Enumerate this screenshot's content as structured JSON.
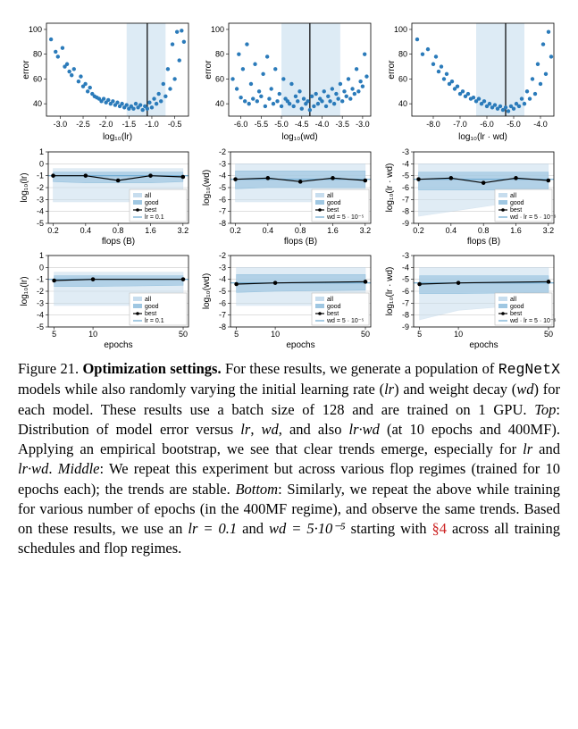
{
  "grid": {
    "columns": 3,
    "rows": 3,
    "point_color": "#2b7bba",
    "point_radius": 2.2,
    "band_fill_light": "#c7ddee",
    "band_fill_mid": "#9fc7e2",
    "best_line_color": "#000000",
    "best_marker_color": "#000000",
    "ref_line_color": "#6aa8d0",
    "grid_color": "#cccccc",
    "axis_color": "#000000",
    "bg_color": "#ffffff"
  },
  "top_row": {
    "y": {
      "label": "error",
      "min": 30,
      "max": 105,
      "ticks": [
        40,
        60,
        80,
        100
      ]
    },
    "panels": [
      {
        "xlabel": "log₁₀(lr)",
        "xmin": -3.3,
        "xmax": -0.2,
        "xticks": [
          -3.0,
          -2.5,
          -2.0,
          -1.5,
          -1.0,
          -0.5
        ],
        "band_x": [
          -1.55,
          -0.7
        ],
        "best_x": -1.1,
        "points": [
          [
            -3.2,
            92
          ],
          [
            -3.1,
            82
          ],
          [
            -3.05,
            78
          ],
          [
            -2.95,
            85
          ],
          [
            -2.9,
            70
          ],
          [
            -2.85,
            72
          ],
          [
            -2.8,
            66
          ],
          [
            -2.75,
            63
          ],
          [
            -2.7,
            68
          ],
          [
            -2.6,
            58
          ],
          [
            -2.55,
            62
          ],
          [
            -2.5,
            54
          ],
          [
            -2.45,
            56
          ],
          [
            -2.4,
            50
          ],
          [
            -2.35,
            53
          ],
          [
            -2.3,
            48
          ],
          [
            -2.25,
            46
          ],
          [
            -2.2,
            45
          ],
          [
            -2.15,
            44
          ],
          [
            -2.1,
            42
          ],
          [
            -2.05,
            44
          ],
          [
            -2.0,
            41
          ],
          [
            -1.95,
            43
          ],
          [
            -1.9,
            40
          ],
          [
            -1.85,
            42
          ],
          [
            -1.8,
            39
          ],
          [
            -1.75,
            41
          ],
          [
            -1.7,
            38
          ],
          [
            -1.65,
            40
          ],
          [
            -1.6,
            37
          ],
          [
            -1.55,
            39
          ],
          [
            -1.5,
            36
          ],
          [
            -1.45,
            38
          ],
          [
            -1.4,
            36
          ],
          [
            -1.35,
            40
          ],
          [
            -1.3,
            37
          ],
          [
            -1.25,
            39
          ],
          [
            -1.2,
            35
          ],
          [
            -1.15,
            38
          ],
          [
            -1.1,
            36
          ],
          [
            -1.05,
            41
          ],
          [
            -1.0,
            37
          ],
          [
            -0.95,
            44
          ],
          [
            -0.9,
            40
          ],
          [
            -0.85,
            48
          ],
          [
            -0.8,
            42
          ],
          [
            -0.75,
            56
          ],
          [
            -0.7,
            46
          ],
          [
            -0.65,
            68
          ],
          [
            -0.6,
            52
          ],
          [
            -0.55,
            88
          ],
          [
            -0.5,
            60
          ],
          [
            -0.45,
            98
          ],
          [
            -0.4,
            75
          ],
          [
            -0.35,
            99
          ],
          [
            -0.3,
            90
          ]
        ]
      },
      {
        "xlabel": "log₁₀(wd)",
        "xmin": -6.3,
        "xmax": -2.8,
        "xticks": [
          -6.0,
          -5.5,
          -5.0,
          -4.5,
          -4.0,
          -3.5,
          -3.0
        ],
        "band_x": [
          -5.0,
          -3.55
        ],
        "best_x": -4.3,
        "points": [
          [
            -6.2,
            60
          ],
          [
            -6.1,
            52
          ],
          [
            -6.05,
            80
          ],
          [
            -6.0,
            45
          ],
          [
            -5.95,
            68
          ],
          [
            -5.9,
            42
          ],
          [
            -5.85,
            88
          ],
          [
            -5.8,
            40
          ],
          [
            -5.75,
            56
          ],
          [
            -5.7,
            44
          ],
          [
            -5.65,
            72
          ],
          [
            -5.6,
            42
          ],
          [
            -5.55,
            50
          ],
          [
            -5.5,
            46
          ],
          [
            -5.45,
            64
          ],
          [
            -5.4,
            38
          ],
          [
            -5.35,
            78
          ],
          [
            -5.3,
            44
          ],
          [
            -5.25,
            52
          ],
          [
            -5.2,
            40
          ],
          [
            -5.15,
            68
          ],
          [
            -5.1,
            42
          ],
          [
            -5.05,
            48
          ],
          [
            -5.0,
            38
          ],
          [
            -4.95,
            60
          ],
          [
            -4.9,
            44
          ],
          [
            -4.85,
            42
          ],
          [
            -4.8,
            40
          ],
          [
            -4.75,
            56
          ],
          [
            -4.7,
            38
          ],
          [
            -4.65,
            46
          ],
          [
            -4.6,
            42
          ],
          [
            -4.55,
            50
          ],
          [
            -4.5,
            36
          ],
          [
            -4.45,
            44
          ],
          [
            -4.4,
            40
          ],
          [
            -4.35,
            42
          ],
          [
            -4.3,
            35
          ],
          [
            -4.25,
            46
          ],
          [
            -4.2,
            38
          ],
          [
            -4.15,
            48
          ],
          [
            -4.1,
            40
          ],
          [
            -4.05,
            44
          ],
          [
            -4.0,
            42
          ],
          [
            -3.95,
            50
          ],
          [
            -3.9,
            38
          ],
          [
            -3.85,
            46
          ],
          [
            -3.8,
            42
          ],
          [
            -3.75,
            52
          ],
          [
            -3.7,
            40
          ],
          [
            -3.65,
            48
          ],
          [
            -3.6,
            44
          ],
          [
            -3.55,
            56
          ],
          [
            -3.5,
            42
          ],
          [
            -3.45,
            50
          ],
          [
            -3.4,
            46
          ],
          [
            -3.35,
            60
          ],
          [
            -3.3,
            44
          ],
          [
            -3.25,
            52
          ],
          [
            -3.2,
            48
          ],
          [
            -3.15,
            68
          ],
          [
            -3.1,
            50
          ],
          [
            -3.05,
            58
          ],
          [
            -3.0,
            54
          ],
          [
            -2.95,
            80
          ],
          [
            -2.9,
            62
          ]
        ]
      },
      {
        "xlabel": "log₁₀(lr · wd)",
        "xmin": -8.8,
        "xmax": -3.5,
        "xticks": [
          -8,
          -7,
          -6,
          -5,
          -4
        ],
        "band_x": [
          -6.4,
          -4.6
        ],
        "best_x": -5.3,
        "points": [
          [
            -8.6,
            92
          ],
          [
            -8.4,
            80
          ],
          [
            -8.2,
            84
          ],
          [
            -8.0,
            72
          ],
          [
            -7.9,
            78
          ],
          [
            -7.8,
            66
          ],
          [
            -7.7,
            70
          ],
          [
            -7.6,
            60
          ],
          [
            -7.5,
            64
          ],
          [
            -7.4,
            56
          ],
          [
            -7.3,
            58
          ],
          [
            -7.2,
            52
          ],
          [
            -7.1,
            54
          ],
          [
            -7.0,
            48
          ],
          [
            -6.9,
            50
          ],
          [
            -6.8,
            46
          ],
          [
            -6.7,
            48
          ],
          [
            -6.6,
            44
          ],
          [
            -6.5,
            45
          ],
          [
            -6.4,
            42
          ],
          [
            -6.3,
            44
          ],
          [
            -6.2,
            40
          ],
          [
            -6.1,
            42
          ],
          [
            -6.0,
            38
          ],
          [
            -5.9,
            40
          ],
          [
            -5.8,
            37
          ],
          [
            -5.7,
            39
          ],
          [
            -5.6,
            36
          ],
          [
            -5.5,
            38
          ],
          [
            -5.4,
            35
          ],
          [
            -5.3,
            37
          ],
          [
            -5.2,
            34
          ],
          [
            -5.1,
            38
          ],
          [
            -5.0,
            36
          ],
          [
            -4.9,
            40
          ],
          [
            -4.8,
            38
          ],
          [
            -4.7,
            44
          ],
          [
            -4.6,
            40
          ],
          [
            -4.5,
            50
          ],
          [
            -4.4,
            44
          ],
          [
            -4.3,
            60
          ],
          [
            -4.2,
            48
          ],
          [
            -4.1,
            72
          ],
          [
            -4.0,
            56
          ],
          [
            -3.9,
            88
          ],
          [
            -3.8,
            64
          ],
          [
            -3.7,
            98
          ],
          [
            -3.6,
            78
          ]
        ]
      }
    ]
  },
  "middle_row": {
    "xlabel": "flops (B)",
    "x_log_ticks": [
      0.2,
      0.4,
      0.8,
      1.6,
      3.2
    ],
    "x_log_range": [
      0.18,
      3.6
    ],
    "panels": [
      {
        "ylabel": "log₁₀(lr)",
        "ymin": -5,
        "ymax": 1,
        "yticks": [
          -5,
          -4,
          -3,
          -2,
          -1,
          0,
          1
        ],
        "all_lo": [
          -3.2,
          -3.2,
          -3.2,
          -3.2,
          -3.2
        ],
        "all_hi": [
          -0.4,
          -0.4,
          -0.4,
          -0.4,
          -0.4
        ],
        "good_lo": [
          -1.5,
          -1.6,
          -1.6,
          -1.6,
          -1.5
        ],
        "good_hi": [
          -0.7,
          -0.7,
          -0.7,
          -0.7,
          -0.7
        ],
        "best": [
          -1.0,
          -1.0,
          -1.4,
          -1.0,
          -1.1
        ],
        "ref": -1.0,
        "ref_label": "lr = 0.1",
        "legend": [
          "all",
          "good",
          "best",
          "lr = 0.1"
        ]
      },
      {
        "ylabel": "log₁₀(wd)",
        "ymin": -8,
        "ymax": -2,
        "yticks": [
          -8,
          -7,
          -6,
          -5,
          -4,
          -3,
          -2
        ],
        "all_lo": [
          -6.2,
          -6.2,
          -6.2,
          -6.2,
          -6.2
        ],
        "all_hi": [
          -3.0,
          -3.0,
          -3.0,
          -3.0,
          -3.0
        ],
        "good_lo": [
          -5.1,
          -5.0,
          -5.0,
          -5.0,
          -5.0
        ],
        "good_hi": [
          -3.6,
          -3.6,
          -3.6,
          -3.6,
          -3.6
        ],
        "best": [
          -4.3,
          -4.2,
          -4.5,
          -4.2,
          -4.4
        ],
        "ref": -4.3,
        "ref_label": "wd = 5 · 10⁻⁵",
        "legend": [
          "all",
          "good",
          "best",
          "wd = 5 · 10⁻⁵"
        ]
      },
      {
        "ylabel": "log₁₀(lr · wd)",
        "ymin": -9,
        "ymax": -3,
        "yticks": [
          -9,
          -8,
          -7,
          -6,
          -5,
          -4,
          -3
        ],
        "all_lo": [
          -8.4,
          -8.0,
          -7.6,
          -7.2,
          -7.0
        ],
        "all_hi": [
          -4.0,
          -4.0,
          -4.0,
          -4.0,
          -4.0
        ],
        "good_lo": [
          -6.2,
          -6.2,
          -6.2,
          -6.2,
          -6.2
        ],
        "good_hi": [
          -4.7,
          -4.7,
          -4.7,
          -4.7,
          -4.7
        ],
        "best": [
          -5.3,
          -5.2,
          -5.6,
          -5.2,
          -5.4
        ],
        "ref": -5.3,
        "ref_label": "wd · lr = 5 · 10⁻⁶",
        "legend": [
          "all",
          "good",
          "best",
          "wd · lr = 5 · 10⁻⁶"
        ]
      }
    ]
  },
  "bottom_row": {
    "xlabel": "epochs",
    "x_log_ticks": [
      5,
      10,
      50
    ],
    "x_log_range": [
      4.5,
      55
    ],
    "panels": [
      {
        "ylabel": "log₁₀(lr)",
        "ymin": -5,
        "ymax": 1,
        "yticks": [
          -5,
          -4,
          -3,
          -2,
          -1,
          0,
          1
        ],
        "all_lo": [
          -3.2,
          -3.2,
          -3.2
        ],
        "all_hi": [
          -0.4,
          -0.4,
          -0.4
        ],
        "good_lo": [
          -1.6,
          -1.6,
          -1.5
        ],
        "good_hi": [
          -0.7,
          -0.7,
          -0.7
        ],
        "best": [
          -1.1,
          -1.0,
          -1.0
        ],
        "ref": -1.0,
        "ref_label": "lr = 0.1",
        "legend": [
          "all",
          "good",
          "best",
          "lr = 0.1"
        ]
      },
      {
        "ylabel": "log₁₀(wd)",
        "ymin": -8,
        "ymax": -2,
        "yticks": [
          -8,
          -7,
          -6,
          -5,
          -4,
          -3,
          -2
        ],
        "all_lo": [
          -6.2,
          -6.2,
          -6.2
        ],
        "all_hi": [
          -3.0,
          -3.0,
          -3.0
        ],
        "good_lo": [
          -5.1,
          -5.0,
          -4.9
        ],
        "good_hi": [
          -3.6,
          -3.6,
          -3.6
        ],
        "best": [
          -4.4,
          -4.3,
          -4.2
        ],
        "ref": -4.3,
        "ref_label": "wd = 5 · 10⁻⁵",
        "legend": [
          "all",
          "good",
          "best",
          "wd = 5 · 10⁻⁵"
        ]
      },
      {
        "ylabel": "log₁₀(lr · wd)",
        "ymin": -9,
        "ymax": -3,
        "yticks": [
          -9,
          -8,
          -7,
          -6,
          -5,
          -4,
          -3
        ],
        "all_lo": [
          -8.4,
          -7.6,
          -7.0
        ],
        "all_hi": [
          -4.0,
          -4.0,
          -4.0
        ],
        "good_lo": [
          -6.2,
          -6.2,
          -6.1
        ],
        "good_hi": [
          -4.7,
          -4.7,
          -4.7
        ],
        "best": [
          -5.4,
          -5.3,
          -5.2
        ],
        "ref": -5.3,
        "ref_label": "wd · lr = 5 · 10⁻⁶",
        "legend": [
          "all",
          "good",
          "best",
          "wd · lr = 5 · 10⁻⁶"
        ]
      }
    ]
  },
  "caption": {
    "figure_number": "Figure 21.",
    "title": "Optimization settings.",
    "body_1": " For these results, we generate a population of ",
    "model_name": "RegNetX",
    "body_2": " models while also randomly varying the initial learning rate (",
    "lr_1": "lr",
    "body_3": ") and weight decay (",
    "wd_1": "wd",
    "body_4": ") for each model. These results use a batch size of 128 and are trained on 1 GPU. ",
    "top_label": "Top",
    "body_5": ": Distribution of model error versus ",
    "lr_2": "lr",
    "body_6": ", ",
    "wd_2": "wd",
    "body_7": ", and also ",
    "lrwd_1": "lr·wd",
    "body_8": " (at 10 epochs and 400MF). Applying an empirical bootstrap, we see that clear trends emerge, especially for ",
    "lr_3": "lr",
    "body_9": " and ",
    "lrwd_2": "lr·wd",
    "body_10": ". ",
    "middle_label": "Middle",
    "body_11": ": We repeat this experiment but across various flop regimes (trained for 10 epochs each); the trends are stable. ",
    "bottom_label": "Bottom",
    "body_12": ": Similarly, we repeat the above while training for various number of epochs (in the 400MF regime), and observe the same trends. Based on these results, we use an ",
    "lr_eq": "lr = 0.1",
    "body_13": " and ",
    "wd_eq": "wd = 5·10⁻⁵",
    "body_14": " starting with ",
    "ref": "§4",
    "body_15": " across all training schedules and flop regimes."
  }
}
